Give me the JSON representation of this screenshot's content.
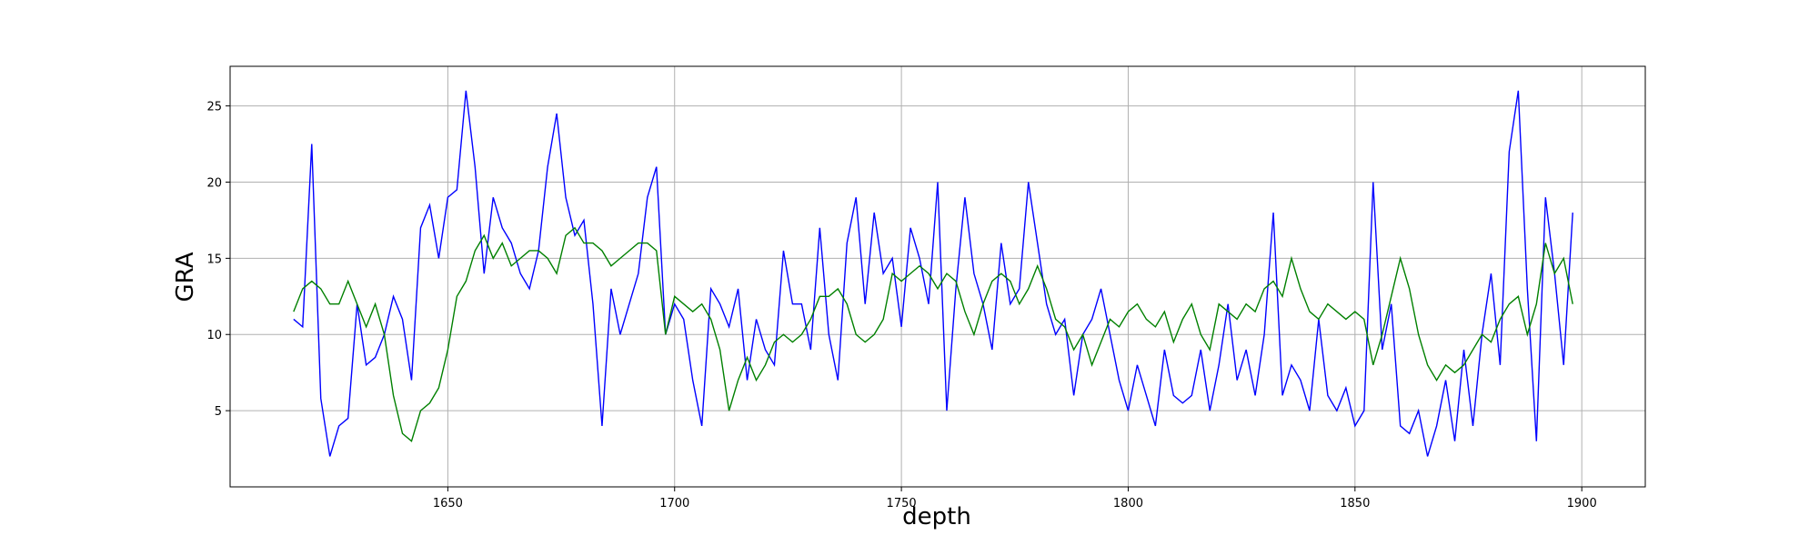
{
  "chart_data": {
    "type": "line",
    "xlabel": "depth",
    "ylabel": "GRA",
    "xlim": [
      1602,
      1914
    ],
    "ylim": [
      0,
      27.6
    ],
    "xticks": [
      1650,
      1700,
      1750,
      1800,
      1850,
      1900
    ],
    "yticks": [
      5,
      10,
      15,
      20,
      25
    ],
    "grid": true,
    "x": [
      1616,
      1618,
      1620,
      1622,
      1624,
      1626,
      1628,
      1630,
      1632,
      1634,
      1636,
      1638,
      1640,
      1642,
      1644,
      1646,
      1648,
      1650,
      1652,
      1654,
      1656,
      1658,
      1660,
      1662,
      1664,
      1666,
      1668,
      1670,
      1672,
      1674,
      1676,
      1678,
      1680,
      1682,
      1684,
      1686,
      1688,
      1690,
      1692,
      1694,
      1696,
      1698,
      1700,
      1702,
      1704,
      1706,
      1708,
      1710,
      1712,
      1714,
      1716,
      1718,
      1720,
      1722,
      1724,
      1726,
      1728,
      1730,
      1732,
      1734,
      1736,
      1738,
      1740,
      1742,
      1744,
      1746,
      1748,
      1750,
      1752,
      1754,
      1756,
      1758,
      1760,
      1762,
      1764,
      1766,
      1768,
      1770,
      1772,
      1774,
      1776,
      1778,
      1780,
      1782,
      1784,
      1786,
      1788,
      1790,
      1792,
      1794,
      1796,
      1798,
      1800,
      1802,
      1804,
      1806,
      1808,
      1810,
      1812,
      1814,
      1816,
      1818,
      1820,
      1822,
      1824,
      1826,
      1828,
      1830,
      1832,
      1834,
      1836,
      1838,
      1840,
      1842,
      1844,
      1846,
      1848,
      1850,
      1852,
      1854,
      1856,
      1858,
      1860,
      1862,
      1864,
      1866,
      1868,
      1870,
      1872,
      1874,
      1876,
      1878,
      1880,
      1882,
      1884,
      1886,
      1888,
      1890,
      1892,
      1894,
      1896,
      1898
    ],
    "series": [
      {
        "color": "#0000ff",
        "values": [
          11,
          10.5,
          22.5,
          5.8,
          2,
          4,
          4.5,
          12,
          8,
          8.5,
          10,
          12.5,
          11,
          7,
          17,
          18.5,
          15,
          19,
          19.5,
          26,
          21,
          14,
          19,
          17,
          16,
          14,
          13,
          15.5,
          21,
          24.5,
          19,
          16.5,
          17.5,
          12,
          4,
          13,
          10,
          12,
          14,
          19,
          21,
          10,
          12,
          11,
          7,
          4,
          13,
          12,
          10.5,
          13,
          7,
          11,
          9,
          8,
          15.5,
          12,
          12,
          9,
          17,
          10,
          7,
          16,
          19,
          12,
          18,
          14,
          15,
          10.5,
          17,
          15,
          12,
          20,
          5,
          13,
          19,
          14,
          12,
          9,
          16,
          12,
          13,
          20,
          16,
          12,
          10,
          11,
          6,
          10,
          11,
          13,
          10,
          7,
          5,
          8,
          6,
          4,
          9,
          6,
          5.5,
          6,
          9,
          5,
          8,
          12,
          7,
          9,
          6,
          10,
          18,
          6,
          8,
          7,
          5,
          11,
          6,
          5,
          6.5,
          4,
          5,
          20,
          9,
          12,
          4,
          3.5,
          5,
          2,
          4,
          7,
          3,
          9,
          4,
          10,
          14,
          8,
          22,
          26,
          13,
          3,
          19,
          14,
          8,
          18
        ]
      },
      {
        "color": "#008000",
        "values": [
          11.5,
          13,
          13.5,
          13,
          12,
          12,
          13.5,
          12,
          10.5,
          12,
          10,
          6,
          3.5,
          3,
          5,
          5.5,
          6.5,
          9,
          12.5,
          13.5,
          15.5,
          16.5,
          15,
          16,
          14.5,
          15,
          15.5,
          15.5,
          15,
          14,
          16.5,
          17,
          16,
          16,
          15.5,
          14.5,
          15,
          15.5,
          16,
          16,
          15.5,
          10,
          12.5,
          12,
          11.5,
          12,
          11,
          9,
          5,
          7,
          8.5,
          7,
          8,
          9.5,
          10,
          9.5,
          10,
          11,
          12.5,
          12.5,
          13,
          12,
          10,
          9.5,
          10,
          11,
          14,
          13.5,
          14,
          14.5,
          14,
          13,
          14,
          13.5,
          11.5,
          10,
          12,
          13.5,
          14,
          13.5,
          12,
          13,
          14.5,
          13,
          11,
          10.5,
          9,
          10,
          8,
          9.5,
          11,
          10.5,
          11.5,
          12,
          11,
          10.5,
          11.5,
          9.5,
          11,
          12,
          10,
          9,
          12,
          11.5,
          11,
          12,
          11.5,
          13,
          13.5,
          12.5,
          15,
          13,
          11.5,
          11,
          12,
          11.5,
          11,
          11.5,
          11,
          8,
          10,
          12.5,
          15,
          13,
          10,
          8,
          7,
          8,
          7.5,
          8,
          9,
          10,
          9.5,
          11,
          12,
          12.5,
          10,
          12,
          16,
          14,
          15,
          12
        ]
      }
    ]
  }
}
